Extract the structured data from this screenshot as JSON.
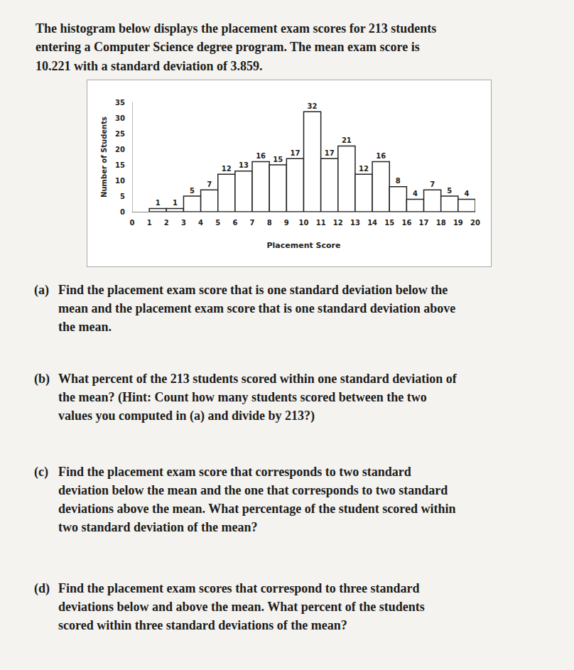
{
  "intro": [
    "The histogram below displays the placement exam scores for 213 students",
    "entering a Computer Science degree program.  The mean exam score is",
    "10.221 with a standard deviation of 3.859."
  ],
  "chart_data": {
    "type": "histogram",
    "bins": [
      1,
      2,
      3,
      4,
      5,
      6,
      7,
      8,
      9,
      10,
      11,
      12,
      13,
      14,
      15,
      16,
      17,
      18,
      19,
      20
    ],
    "counts": [
      1,
      1,
      5,
      7,
      12,
      13,
      16,
      15,
      17,
      32,
      17,
      21,
      12,
      16,
      8,
      4,
      7,
      5,
      4
    ],
    "xlabel": "Placement Score",
    "ylabel": "Number of Students",
    "xlim": [
      0,
      20
    ],
    "xticks": [
      0,
      1,
      2,
      3,
      4,
      5,
      6,
      7,
      8,
      9,
      10,
      11,
      12,
      13,
      14,
      15,
      16,
      17,
      18,
      19,
      20
    ],
    "ylim": [
      0,
      35
    ],
    "yticks": [
      0,
      5,
      10,
      15,
      20,
      25,
      30,
      35
    ],
    "color": "#ffffff",
    "data_labels": true,
    "grid": false
  },
  "questions": [
    {
      "label": "(a)",
      "lines": [
        "Find the placement exam score that is one standard deviation below the",
        "mean and the placement exam score that is one standard deviation above",
        "the mean."
      ]
    },
    {
      "label": "(b)",
      "lines": [
        "What percent of the 213 students scored within one standard deviation of",
        "the mean?  (Hint:  Count how many students scored between the two",
        "values you computed in (a) and divide by 213?)"
      ]
    },
    {
      "label": "(c)",
      "lines": [
        "Find the placement exam score that corresponds to two standard",
        "deviation below the mean and the one that corresponds to two standard",
        "deviations above the mean.  What percentage of the student scored within",
        "two standard deviation of the mean?"
      ]
    },
    {
      "label": "(d)",
      "lines": [
        "Find the placement exam scores that correspond to three standard",
        "deviations below and above the mean.  What percent of the students",
        "scored within three standard deviations of the mean?"
      ]
    }
  ]
}
